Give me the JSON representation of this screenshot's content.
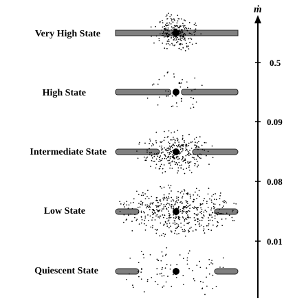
{
  "axis": {
    "label": "ṁ",
    "ticks": [
      "0.5",
      "0.09",
      "0.08",
      "0.01"
    ]
  },
  "states": [
    {
      "label": "Very High State",
      "disk_gap": "none",
      "corona_density": "dense-compact"
    },
    {
      "label": "High State",
      "disk_gap": "small",
      "corona_density": "sparse"
    },
    {
      "label": "Intermediate State",
      "disk_gap": "medium",
      "corona_density": "dense"
    },
    {
      "label": "Low State",
      "disk_gap": "large",
      "corona_density": "very-dense"
    },
    {
      "label": "Quiescent State",
      "disk_gap": "very-large",
      "corona_density": "sparse"
    }
  ],
  "colors": {
    "disk_fill": "#808080",
    "disk_stroke": "#222222",
    "dot": "#000000",
    "background": "#ffffff"
  }
}
